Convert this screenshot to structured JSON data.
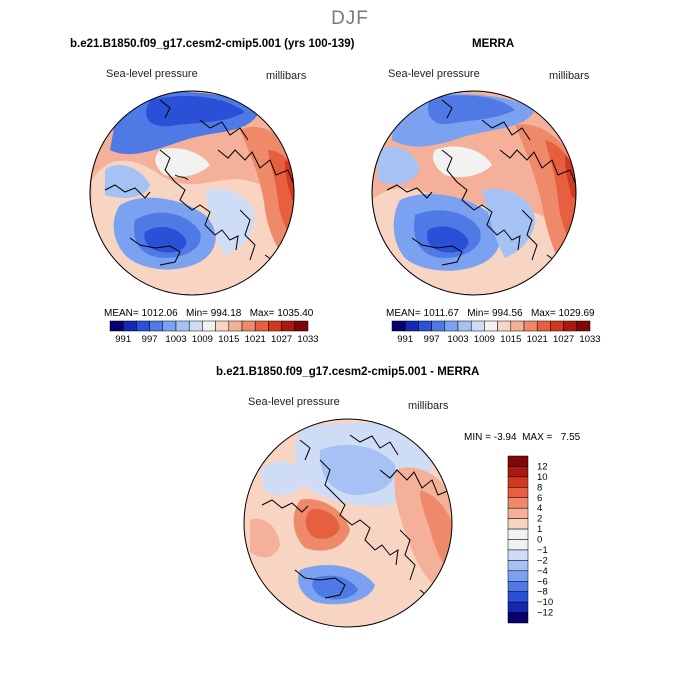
{
  "season": "DJF",
  "colors": {
    "scale": [
      "#08006e",
      "#1428b4",
      "#2b50d8",
      "#4f7ae6",
      "#7aa2f0",
      "#a6c2f4",
      "#cfdcf6",
      "#f2f2f2",
      "#f8d4c2",
      "#f4b098",
      "#ee8a6a",
      "#e6603f",
      "#d2381f",
      "#a81a10",
      "#7d0808"
    ]
  },
  "panel_left": {
    "title": "b.e21.B1850.f09_g17.cesm2-cmip5.001 (yrs 100-139)",
    "variable": "Sea-level pressure",
    "units": "millibars",
    "stats": {
      "mean_label": "MEAN=",
      "mean": "1012.06",
      "min_label": "Min=",
      "min": "994.18",
      "max_label": "Max=",
      "max": "1035.40"
    },
    "colorbar_labels": [
      "991",
      "997",
      "1003",
      "1009",
      "1015",
      "1021",
      "1027",
      "1033"
    ]
  },
  "panel_right": {
    "title": "MERRA",
    "variable": "Sea-level pressure",
    "units": "millibars",
    "stats": {
      "mean_label": "MEAN=",
      "mean": "1011.67",
      "min_label": "Min=",
      "min": "994.56",
      "max_label": "Max=",
      "max": "1029.69"
    },
    "colorbar_labels": [
      "991",
      "997",
      "1003",
      "1009",
      "1015",
      "1021",
      "1027",
      "1033"
    ]
  },
  "panel_diff": {
    "title": "b.e21.B1850.f09_g17.cesm2-cmip5.001 - MERRA",
    "variable": "Sea-level pressure",
    "units": "millibars",
    "stats": {
      "min_label": "MIN =",
      "min": "-3.94",
      "max_label": "MAX =",
      "max": "7.55"
    },
    "colorbar_labels": [
      "12",
      "10",
      "8",
      "6",
      "4",
      "2",
      "1",
      "0",
      "−1",
      "−2",
      "−4",
      "−6",
      "−8",
      "−10",
      "−12"
    ]
  }
}
